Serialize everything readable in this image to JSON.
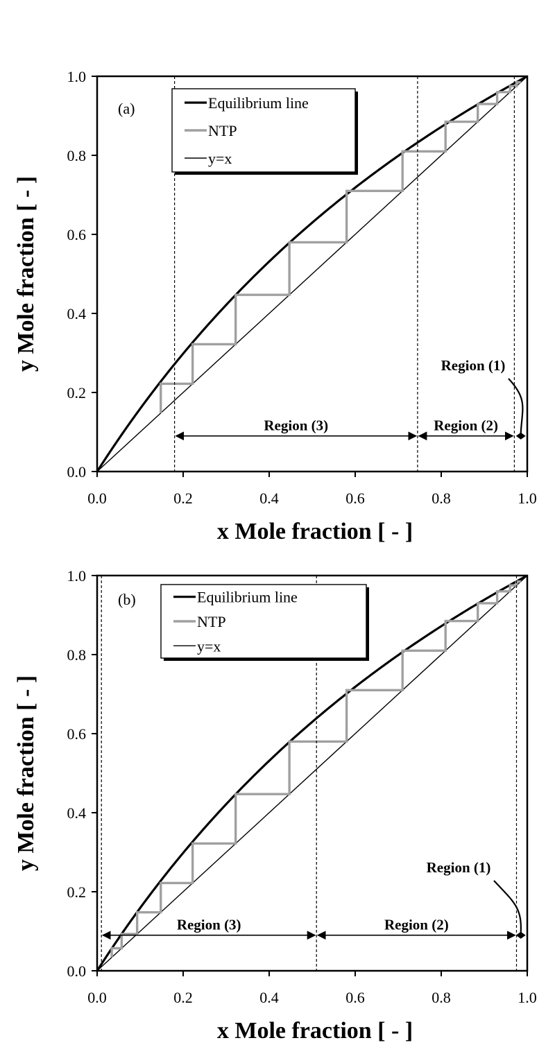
{
  "chart_data": [
    {
      "type": "line",
      "panel_label": "(a)",
      "xlabel_var": "x",
      "xlabel": "Mole fraction  [ - ]",
      "ylabel_var": "y",
      "ylabel": "Mole fraction  [ - ]",
      "xlim": [
        0.0,
        1.0
      ],
      "ylim": [
        0.0,
        1.0
      ],
      "xticks": [
        "0.0",
        "0.2",
        "0.4",
        "0.6",
        "0.8",
        "1.0"
      ],
      "yticks": [
        "0.0",
        "0.2",
        "0.4",
        "0.6",
        "0.8",
        "1.0"
      ],
      "grid": false,
      "legend_position": "top-left",
      "series": [
        {
          "name": "Equilibrium line",
          "color": "#000000",
          "curve": "vle",
          "alpha": 1.7
        },
        {
          "name": "NTP",
          "color": "#a0a0a0",
          "steps_x": [
            0.985,
            0.975,
            0.96,
            0.93,
            0.885,
            0.81,
            0.71,
            0.58,
            0.447,
            0.322,
            0.222,
            0.148
          ]
        },
        {
          "name": "y=x",
          "color": "#000000"
        }
      ],
      "boundaries": [
        0.18,
        0.745,
        0.97
      ],
      "regions": [
        {
          "label": "Region (3)",
          "from": 0.18,
          "to": 0.745,
          "y": 0.09
        },
        {
          "label": "Region (2)",
          "from": 0.745,
          "to": 0.97,
          "y": 0.09
        }
      ],
      "region1": {
        "label": "Region (1)",
        "x": 0.985,
        "y": 0.09
      }
    },
    {
      "type": "line",
      "panel_label": "(b)",
      "xlabel_var": "x",
      "xlabel": "Mole fraction  [ - ]",
      "ylabel_var": "y",
      "ylabel": "Mole fraction  [ - ]",
      "xlim": [
        0.0,
        1.0
      ],
      "ylim": [
        0.0,
        1.0
      ],
      "xticks": [
        "0.0",
        "0.2",
        "0.4",
        "0.6",
        "0.8",
        "1.0"
      ],
      "yticks": [
        "0.0",
        "0.2",
        "0.4",
        "0.6",
        "0.8",
        "1.0"
      ],
      "grid": false,
      "legend_position": "top-left",
      "series": [
        {
          "name": "Equilibrium line",
          "color": "#000000",
          "curve": "vle",
          "alpha": 1.7
        },
        {
          "name": "NTP",
          "color": "#a0a0a0",
          "steps_x": [
            0.985,
            0.975,
            0.96,
            0.93,
            0.885,
            0.81,
            0.71,
            0.58,
            0.447,
            0.322,
            0.222,
            0.148,
            0.093,
            0.057,
            0.034
          ]
        },
        {
          "name": "y=x",
          "color": "#000000"
        }
      ],
      "boundaries": [
        0.01,
        0.51,
        0.975
      ],
      "regions": [
        {
          "label": "Region (3)",
          "from": 0.01,
          "to": 0.51,
          "y": 0.09
        },
        {
          "label": "Region (2)",
          "from": 0.51,
          "to": 0.975,
          "y": 0.09
        }
      ],
      "region1": {
        "label": "Region (1)",
        "x": 0.985,
        "y": 0.09
      }
    }
  ]
}
